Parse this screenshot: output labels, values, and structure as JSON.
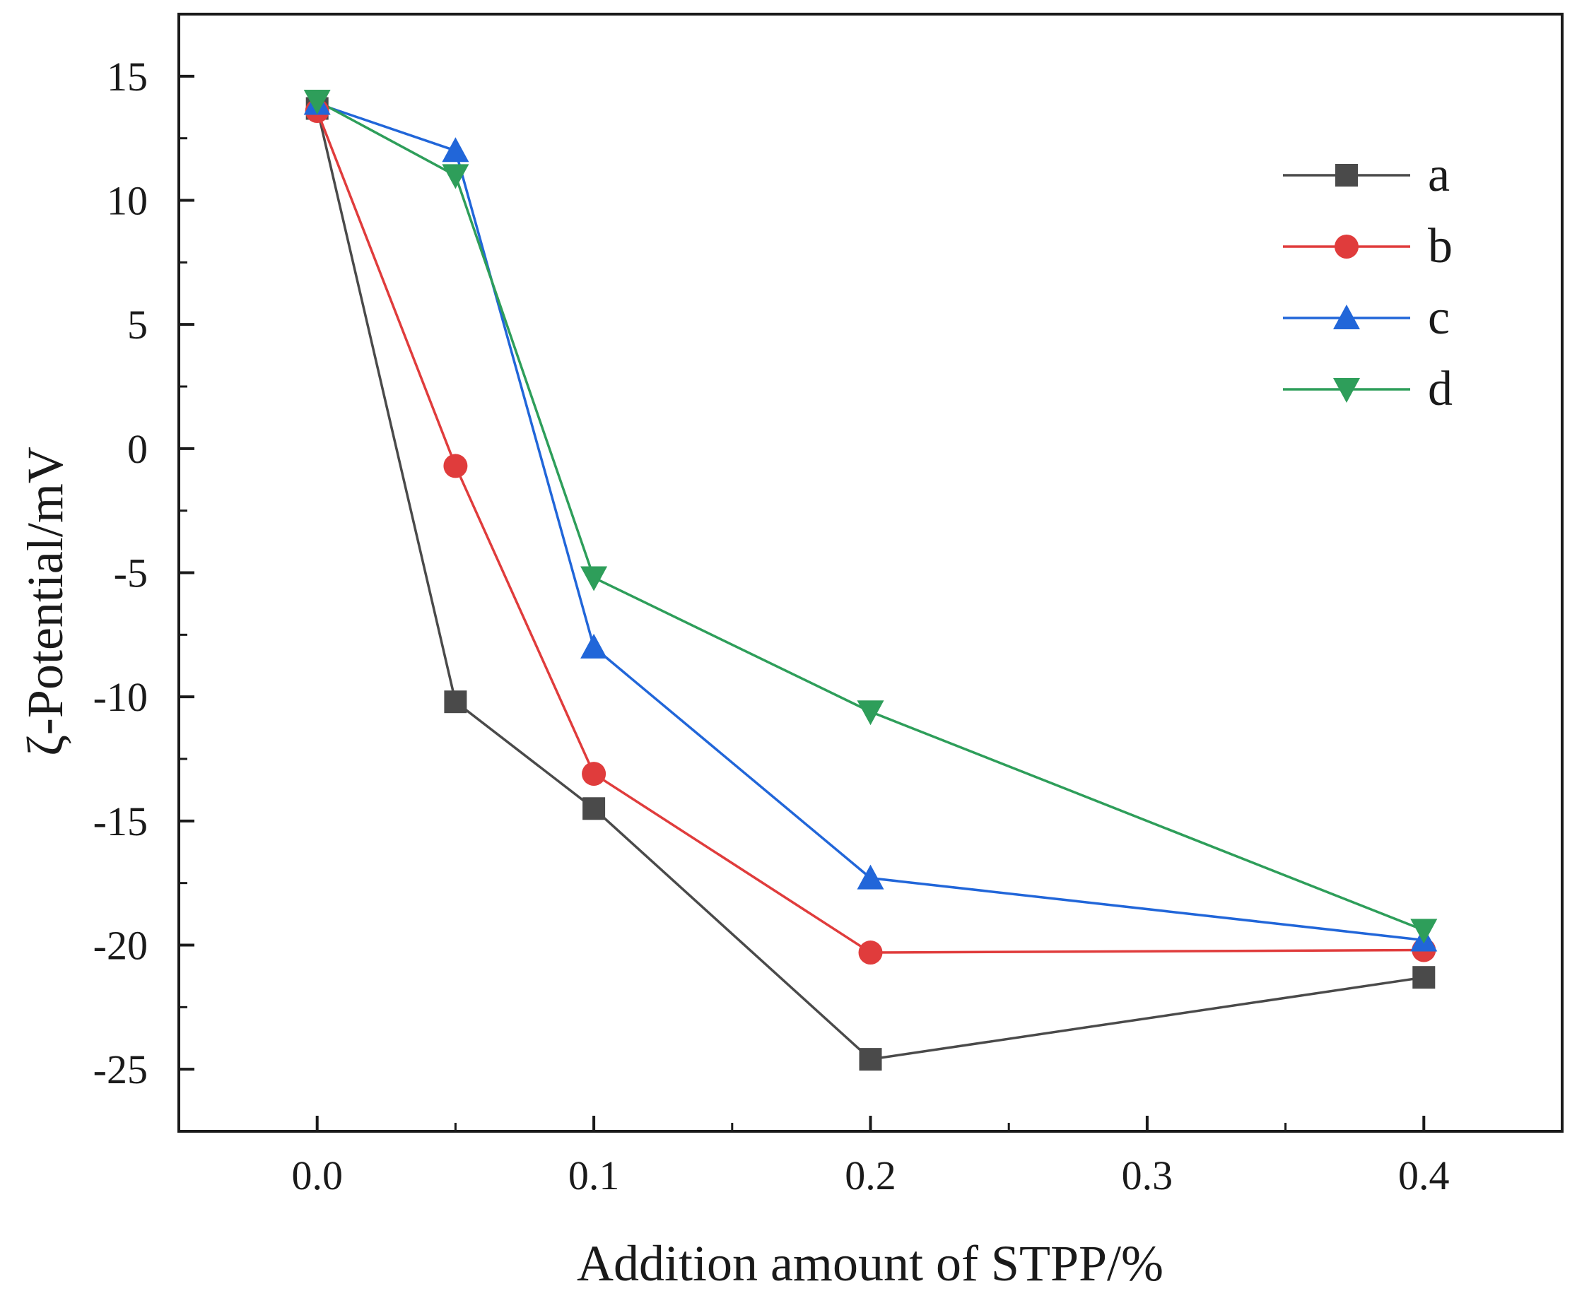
{
  "chart_data": {
    "type": "line",
    "title": "",
    "xlabel": "Addition amount of STPP/%",
    "ylabel": "ζ-Potential/mV",
    "xlim": [
      -0.05,
      0.45
    ],
    "ylim": [
      -27.5,
      17.5
    ],
    "x_ticks": [
      0.0,
      0.1,
      0.2,
      0.3,
      0.4
    ],
    "x_tick_labels": [
      "0.0",
      "0.1",
      "0.2",
      "0.3",
      "0.4"
    ],
    "x_minor_ticks": [
      0.05,
      0.15,
      0.25,
      0.35
    ],
    "y_ticks": [
      15,
      10,
      5,
      0,
      -5,
      -10,
      -15,
      -20,
      -25
    ],
    "y_tick_labels": [
      "15",
      "10",
      "5",
      "0",
      "-5",
      "-10",
      "-15",
      "-20",
      "-25"
    ],
    "y_minor_ticks": [
      12.5,
      7.5,
      2.5,
      -2.5,
      -7.5,
      -12.5,
      -17.5,
      -22.5
    ],
    "grid": false,
    "legend_position": "top-right",
    "x": [
      0.0,
      0.05,
      0.1,
      0.2,
      0.4
    ],
    "series": [
      {
        "name": "a",
        "marker": "square",
        "color": "#4a4a4a",
        "values": [
          13.7,
          -10.2,
          -14.5,
          -24.6,
          -21.3
        ]
      },
      {
        "name": "b",
        "marker": "circle",
        "color": "#e03c3c",
        "values": [
          13.6,
          -0.7,
          -13.1,
          -20.3,
          -20.2
        ]
      },
      {
        "name": "c",
        "marker": "triangle-up",
        "color": "#2166d9",
        "values": [
          13.9,
          12.0,
          -8.0,
          -17.3,
          -19.8
        ]
      },
      {
        "name": "d",
        "marker": "triangle-down",
        "color": "#2e9e5a",
        "values": [
          14.0,
          11.0,
          -5.2,
          -10.6,
          -19.4
        ]
      }
    ]
  }
}
